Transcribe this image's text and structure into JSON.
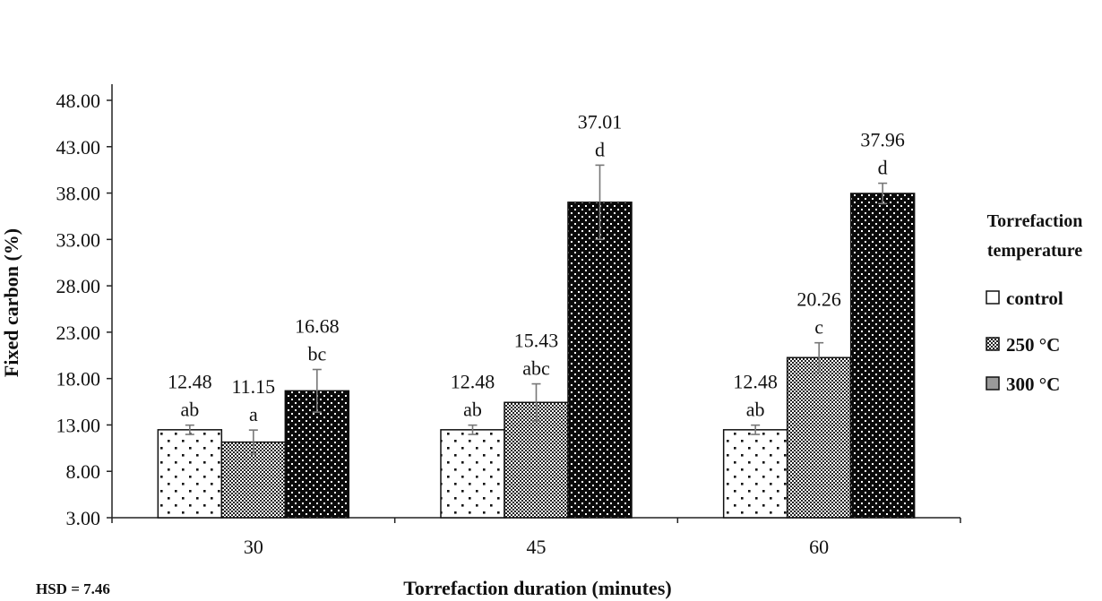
{
  "chart_data": {
    "type": "bar",
    "title": "",
    "xlabel": "Torrefaction duration (minutes)",
    "ylabel": "Fixed carbon (%)",
    "ylim": [
      3,
      48
    ],
    "yticks": [
      "3.00",
      "8.00",
      "13.00",
      "18.00",
      "23.00",
      "28.00",
      "33.00",
      "38.00",
      "43.00",
      "48.00"
    ],
    "categories": [
      "30",
      "45",
      "60"
    ],
    "legend_title": [
      "Torrefaction",
      "temperature"
    ],
    "legend_position": "right",
    "grid": false,
    "series": [
      {
        "name": "control",
        "pattern": "sparse-dots",
        "values": [
          12.48,
          12.48,
          12.48
        ],
        "errors": [
          0.5,
          0.5,
          0.5
        ],
        "labels": [
          "12.48",
          "12.48",
          "12.48"
        ],
        "letters": [
          "ab",
          "ab",
          "ab"
        ]
      },
      {
        "name": "250 °C",
        "pattern": "checker",
        "values": [
          11.15,
          15.43,
          20.26
        ],
        "errors": [
          1.3,
          2.0,
          1.6
        ],
        "labels": [
          "11.15",
          "15.43",
          "20.26"
        ],
        "letters": [
          "a",
          "abc",
          "c"
        ]
      },
      {
        "name": "300 °C",
        "pattern": "dense-dots-dark",
        "values": [
          16.68,
          37.01,
          37.96
        ],
        "errors": [
          2.3,
          4.0,
          1.1
        ],
        "labels": [
          "16.68",
          "37.01",
          "37.96"
        ],
        "letters": [
          "bc",
          "d",
          "d"
        ]
      }
    ],
    "annotations": [
      "HSD = 7.46"
    ]
  }
}
